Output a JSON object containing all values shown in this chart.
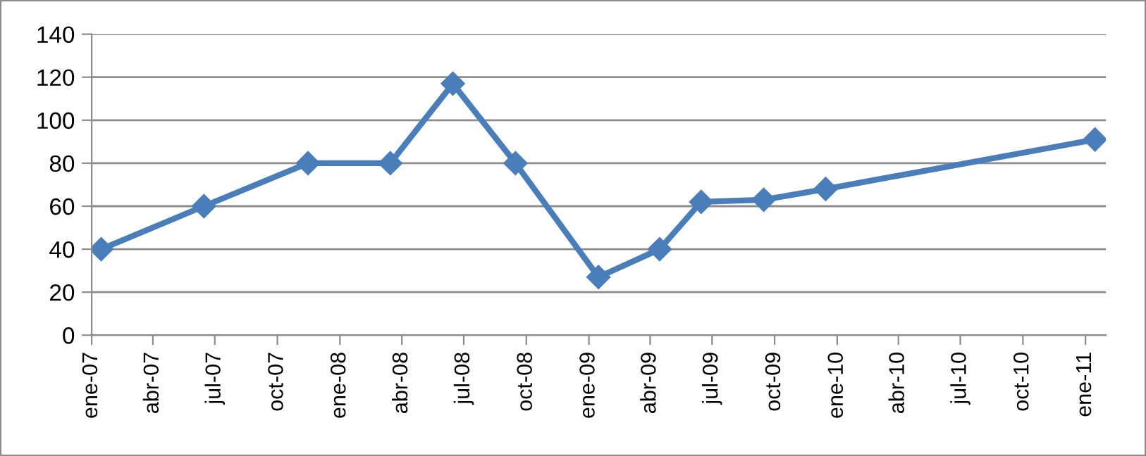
{
  "chart_data": {
    "type": "line",
    "x": [
      "2007-01-15",
      "2007-06-15",
      "2007-11-15",
      "2008-03-15",
      "2008-06-15",
      "2008-09-15",
      "2009-01-15",
      "2009-04-15",
      "2009-06-15",
      "2009-09-15",
      "2009-12-15",
      "2011-01-15"
    ],
    "series": [
      {
        "color": "#4a7ebb",
        "values": [
          40,
          60,
          80,
          80,
          117,
          80,
          27,
          40,
          62,
          63,
          68,
          91
        ]
      }
    ],
    "xlim": [
      "2007-01-01",
      "2011-01-31"
    ],
    "xticks": [
      {
        "value": "2007-01-01",
        "label": "ene-07"
      },
      {
        "value": "2007-04-01",
        "label": "abr-07"
      },
      {
        "value": "2007-07-01",
        "label": "jul-07"
      },
      {
        "value": "2007-10-01",
        "label": "oct-07"
      },
      {
        "value": "2008-01-01",
        "label": "ene-08"
      },
      {
        "value": "2008-04-01",
        "label": "abr-08"
      },
      {
        "value": "2008-07-01",
        "label": "jul-08"
      },
      {
        "value": "2008-10-01",
        "label": "oct-08"
      },
      {
        "value": "2009-01-01",
        "label": "ene-09"
      },
      {
        "value": "2009-04-01",
        "label": "abr-09"
      },
      {
        "value": "2009-07-01",
        "label": "jul-09"
      },
      {
        "value": "2009-10-01",
        "label": "oct-09"
      },
      {
        "value": "2010-01-01",
        "label": "ene-10"
      },
      {
        "value": "2010-04-01",
        "label": "abr-10"
      },
      {
        "value": "2010-07-01",
        "label": "jul-10"
      },
      {
        "value": "2010-10-01",
        "label": "oct-10"
      },
      {
        "value": "2011-01-01",
        "label": "ene-11"
      }
    ],
    "ylim": [
      0,
      140
    ],
    "yticks": [
      0,
      20,
      40,
      60,
      80,
      100,
      120,
      140
    ],
    "grid": "y",
    "marker": "diamond",
    "line_style": "solid"
  }
}
